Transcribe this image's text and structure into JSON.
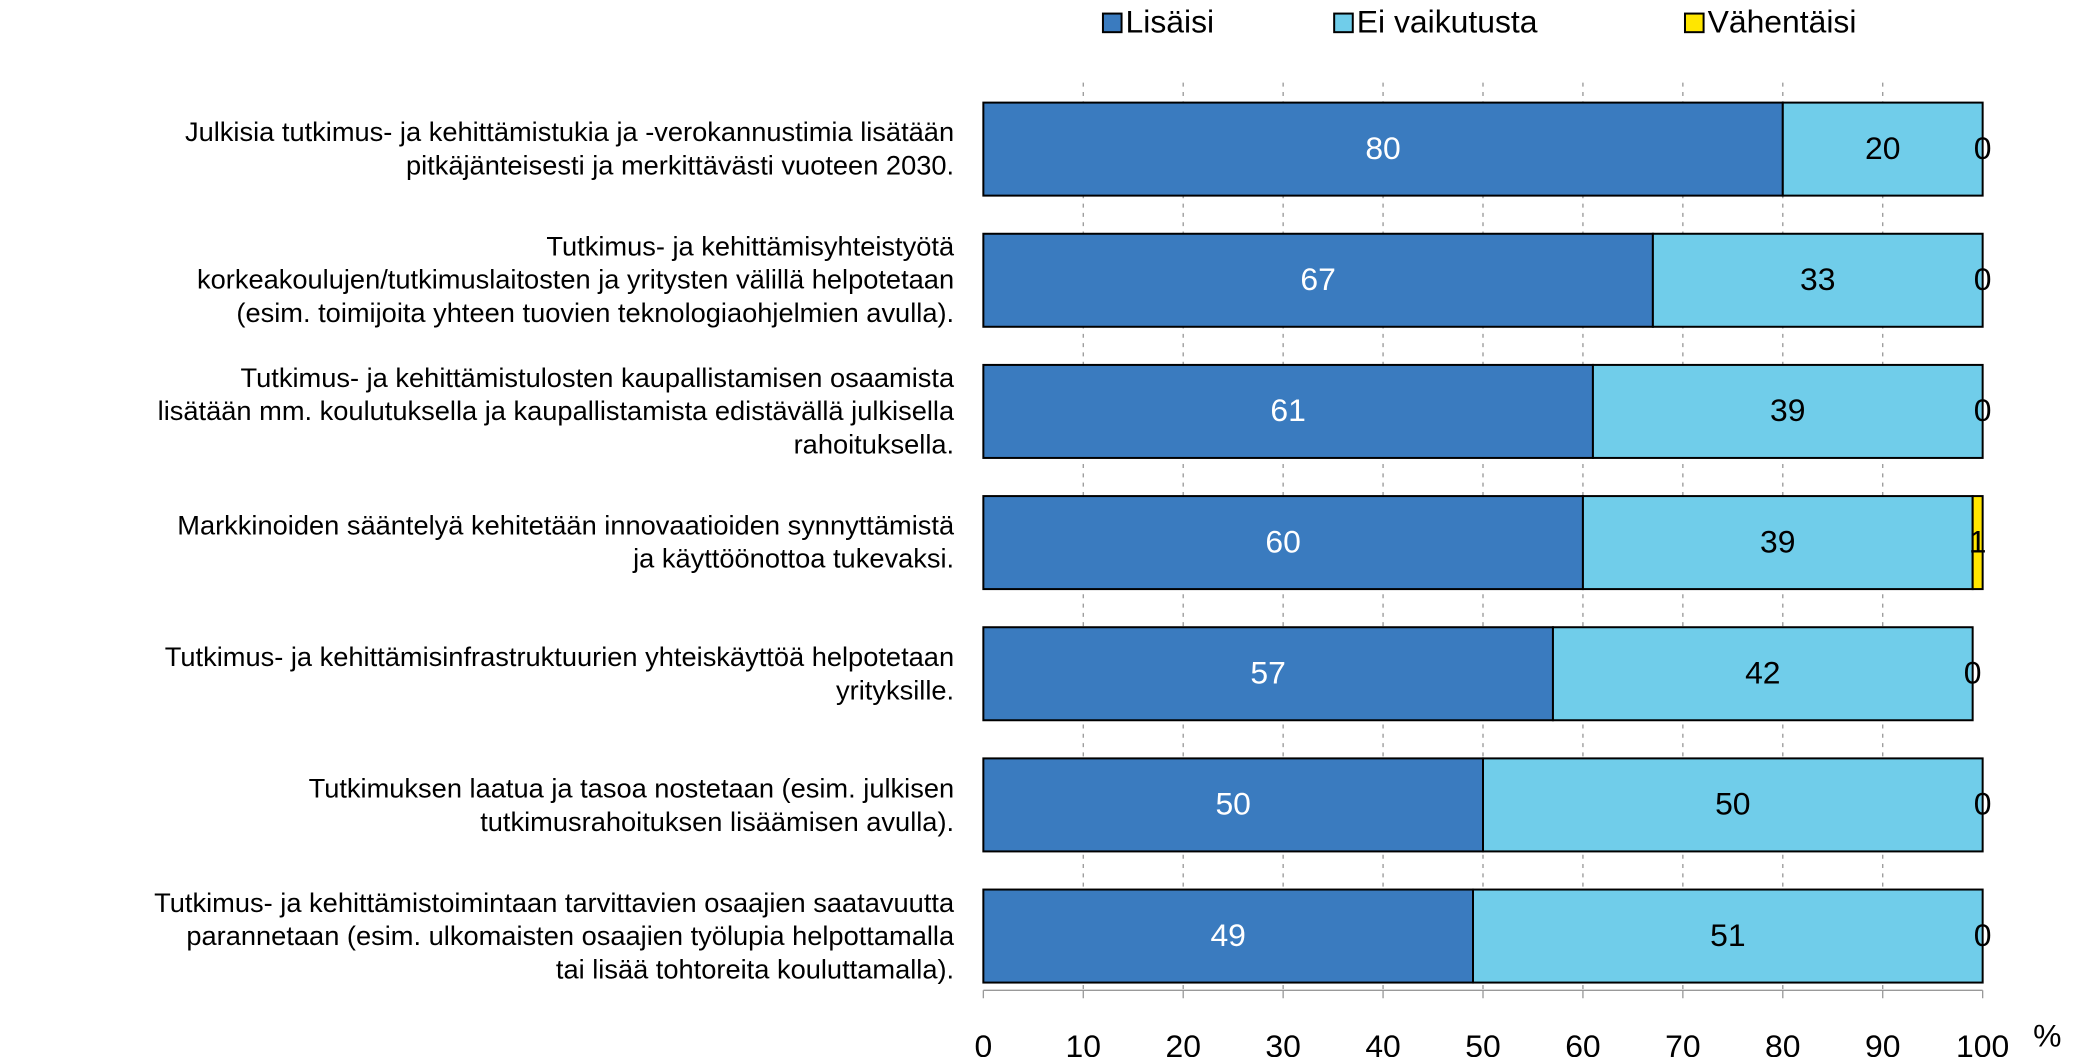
{
  "chart_data": {
    "type": "stacked_barh",
    "categories": [
      "Julkisia tutkimus- ja kehittämistukia ja -verokannustimia lisätään\npitkäjänteisesti ja merkittävästi vuoteen 2030.",
      "Tutkimus- ja kehittämisyhteistyötä\nkorkeakoulujen/tutkimuslaitosten ja yritysten välillä helpotetaan\n(esim. toimijoita yhteen tuovien teknologiaohjelmien avulla).",
      "Tutkimus- ja kehittämistulosten kaupallistamisen osaamista\nlisätään mm. koulutuksella ja kaupallistamista edistävällä julkisella\nrahoituksella.",
      "Markkinoiden sääntelyä kehitetään innovaatioiden synnyttämistä\nja käyttöönottoa tukevaksi.",
      "Tutkimus- ja kehittämisinfrastruktuurien yhteiskäyttöä helpotetaan\nyrityksille.",
      "Tutkimuksen laatua ja tasoa nostetaan (esim. julkisen\ntutkimusrahoituksen lisäämisen avulla).",
      "Tutkimus- ja kehittämistoimintaan tarvittavien osaajien saatavuutta\nparannetaan (esim. ulkomaisten osaajien työlupia helpottamalla\ntai lisää tohtoreita kouluttamalla)."
    ],
    "series": [
      {
        "name": "Lisäisi",
        "color": "#3a7bbf",
        "values": [
          80,
          67,
          61,
          60,
          57,
          50,
          49
        ]
      },
      {
        "name": "Ei vaikutusta",
        "color": "#70cdea",
        "values": [
          20,
          33,
          39,
          39,
          42,
          50,
          51
        ]
      },
      {
        "name": "Vähentäisi",
        "color": "#ffe600",
        "values": [
          0,
          0,
          0,
          1,
          0,
          0,
          0
        ]
      }
    ],
    "xlim": [
      0,
      100
    ],
    "xticks": [
      0,
      10,
      20,
      30,
      40,
      50,
      60,
      70,
      80,
      90,
      100
    ],
    "x_unit": "%",
    "grid": true,
    "legend": "top"
  }
}
